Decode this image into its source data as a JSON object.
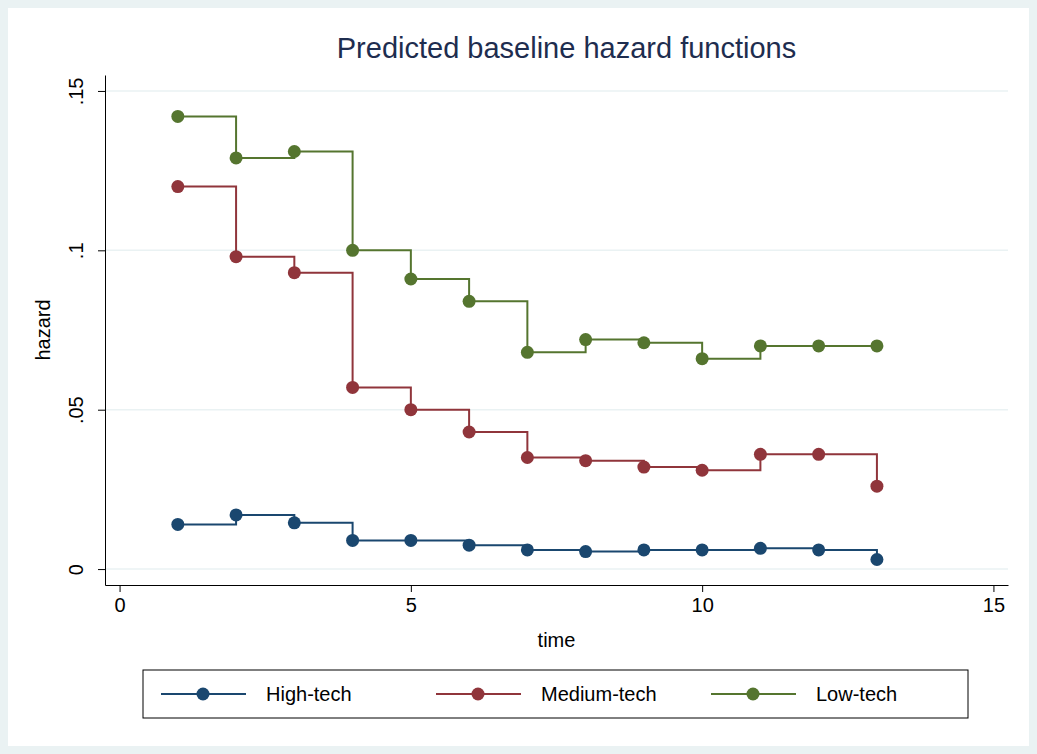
{
  "chart_data": {
    "type": "line",
    "title": "Predicted baseline hazard functions",
    "x_label": "time",
    "y_label": "hazard",
    "x": [
      1,
      2,
      3,
      4,
      5,
      6,
      7,
      8,
      9,
      10,
      11,
      12,
      13
    ],
    "series": [
      {
        "name": "High-tech",
        "color": "#1a476f",
        "values": [
          0.014,
          0.017,
          0.0145,
          0.009,
          0.009,
          0.0075,
          0.006,
          0.0055,
          0.006,
          0.006,
          0.0065,
          0.006,
          0.003
        ]
      },
      {
        "name": "Medium-tech",
        "color": "#90353b",
        "values": [
          0.12,
          0.098,
          0.093,
          0.057,
          0.05,
          0.043,
          0.035,
          0.034,
          0.032,
          0.031,
          0.036,
          0.036,
          0.026
        ]
      },
      {
        "name": "Low-tech",
        "color": "#55752f",
        "values": [
          0.142,
          0.129,
          0.131,
          0.1,
          0.091,
          0.084,
          0.068,
          0.072,
          0.071,
          0.066,
          0.07,
          0.07,
          0.07
        ]
      }
    ],
    "xlim": [
      -0.25,
      15.25
    ],
    "xticks": [
      0,
      5,
      10,
      15
    ],
    "ylim": [
      -0.005,
      0.155
    ],
    "yticks": [
      {
        "value": 0,
        "label": "0"
      },
      {
        "value": 0.05,
        "label": ".05"
      },
      {
        "value": 0.1,
        "label": ".1"
      },
      {
        "value": 0.15,
        "label": ".15"
      }
    ],
    "grid": true,
    "legend": "bottom",
    "marker": "circle",
    "line_style": "step"
  }
}
